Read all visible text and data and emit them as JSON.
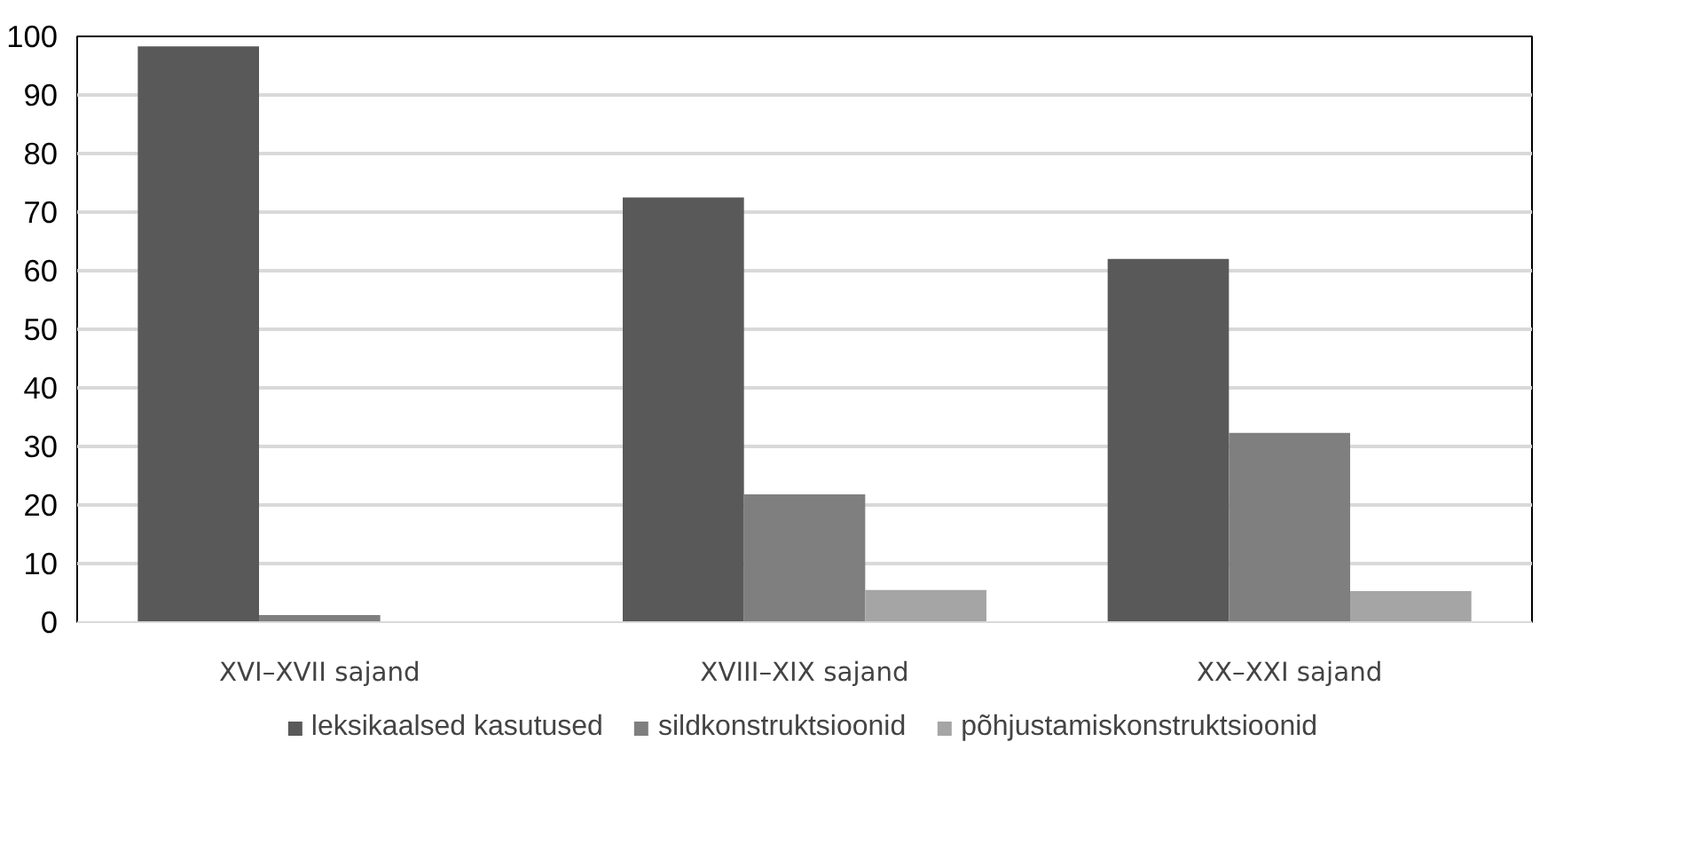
{
  "chart_data": {
    "type": "bar",
    "categories": [
      "XVI–XVII sajand",
      "XVIII–XIX sajand",
      "XX–XXI sajand"
    ],
    "series": [
      {
        "name": "leksikaalsed kasutused",
        "color": "#595959",
        "values": [
          98.3,
          72.5,
          62
        ]
      },
      {
        "name": "sildkonstruktsioonid",
        "color": "#7f7f7f",
        "values": [
          1.2,
          21.8,
          32.3
        ]
      },
      {
        "name": "põhjustamiskonstruktsioonid",
        "color": "#a5a5a5",
        "values": [
          0,
          5.5,
          5.3
        ]
      }
    ],
    "ylim": [
      0,
      100
    ],
    "yticks": [
      0,
      10,
      20,
      30,
      40,
      50,
      60,
      70,
      80,
      90,
      100
    ],
    "grid": "y",
    "legend": "bottom"
  }
}
